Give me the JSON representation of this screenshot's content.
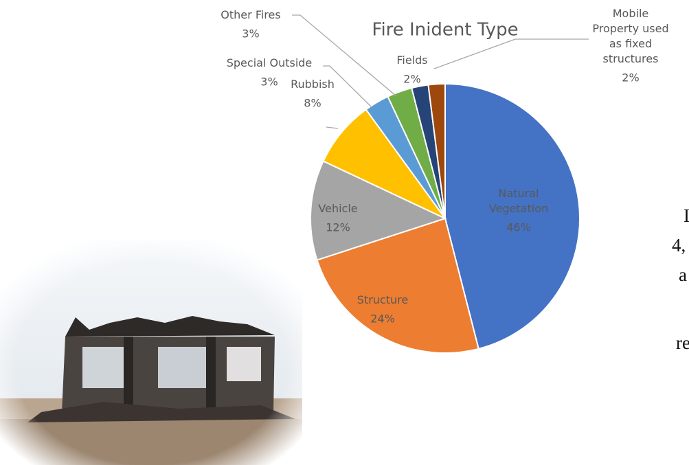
{
  "chart_data": {
    "type": "pie",
    "title": "Fire Inident Type",
    "categories": [
      "Natural Vegetation",
      "Structure",
      "Vehicle",
      "Rubbish",
      "Special Outside",
      "Other Fires",
      "Fields",
      "Mobile Property used as fixed structures"
    ],
    "values": [
      46,
      24,
      12,
      8,
      3,
      3,
      2,
      2
    ],
    "value_labels": [
      "46%",
      "24%",
      "12%",
      "8%",
      "3%",
      "3%",
      "2%",
      "2%"
    ],
    "colors": [
      "#4472c4",
      "#ed7d31",
      "#a5a5a5",
      "#ffc000",
      "#5b9bd5",
      "#70ad47",
      "#264478",
      "#9e480e"
    ]
  },
  "side_text": [
    "I",
    "4,",
    "a",
    "re"
  ]
}
